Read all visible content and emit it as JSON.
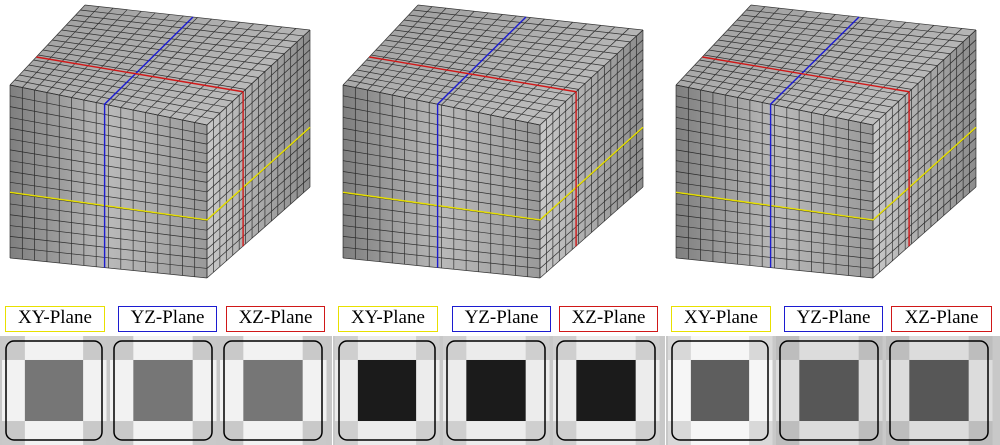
{
  "groups": [
    {
      "cube": {
        "shade": "#a9a9a9"
      },
      "planes": [
        {
          "label": "XY-Plane",
          "cells": [
            "#c9c9c9",
            "#f2f2f2",
            "#c9c9c9",
            "#f2f2f2",
            "#767676",
            "#f2f2f2",
            "#c9c9c9",
            "#f2f2f2",
            "#c9c9c9"
          ]
        },
        {
          "label": "YZ-Plane",
          "cells": [
            "#c9c9c9",
            "#f2f2f2",
            "#c9c9c9",
            "#f2f2f2",
            "#767676",
            "#f2f2f2",
            "#c9c9c9",
            "#f2f2f2",
            "#c9c9c9"
          ]
        },
        {
          "label": "XZ-Plane",
          "cells": [
            "#c9c9c9",
            "#f2f2f2",
            "#c9c9c9",
            "#f2f2f2",
            "#767676",
            "#f2f2f2",
            "#c9c9c9",
            "#f2f2f2",
            "#c9c9c9"
          ]
        }
      ]
    },
    {
      "cube": {
        "shade": "#a9a9a9"
      },
      "planes": [
        {
          "label": "XY-Plane",
          "cells": [
            "#cfcfcf",
            "#ececec",
            "#cfcfcf",
            "#ececec",
            "#1b1b1b",
            "#ececec",
            "#cfcfcf",
            "#ececec",
            "#cfcfcf"
          ]
        },
        {
          "label": "YZ-Plane",
          "cells": [
            "#cfcfcf",
            "#ececec",
            "#cfcfcf",
            "#ececec",
            "#1b1b1b",
            "#ececec",
            "#cfcfcf",
            "#ececec",
            "#cfcfcf"
          ]
        },
        {
          "label": "XZ-Plane",
          "cells": [
            "#cfcfcf",
            "#ececec",
            "#cfcfcf",
            "#ececec",
            "#1b1b1b",
            "#ececec",
            "#cfcfcf",
            "#ececec",
            "#cfcfcf"
          ]
        }
      ]
    },
    {
      "cube": {
        "shade": "#a9a9a9"
      },
      "planes": [
        {
          "label": "XY-Plane",
          "cells": [
            "#d8d8d8",
            "#f6f6f6",
            "#d8d8d8",
            "#f6f6f6",
            "#5e5e5e",
            "#f6f6f6",
            "#d8d8d8",
            "#f6f6f6",
            "#d8d8d8"
          ]
        },
        {
          "label": "YZ-Plane",
          "cells": [
            "#bdbdbd",
            "#dcdcdc",
            "#bdbdbd",
            "#dcdcdc",
            "#575757",
            "#dcdcdc",
            "#bdbdbd",
            "#dcdcdc",
            "#bdbdbd"
          ]
        },
        {
          "label": "XZ-Plane",
          "cells": [
            "#bdbdbd",
            "#dcdcdc",
            "#bdbdbd",
            "#dcdcdc",
            "#575757",
            "#dcdcdc",
            "#bdbdbd",
            "#dcdcdc",
            "#bdbdbd"
          ]
        }
      ]
    }
  ],
  "colors": {
    "xy": "#e8e000",
    "yz": "#1c1cd0",
    "xz": "#d01818",
    "mesh": "#1a1a1a",
    "background_strip": "#c8c8c8"
  }
}
